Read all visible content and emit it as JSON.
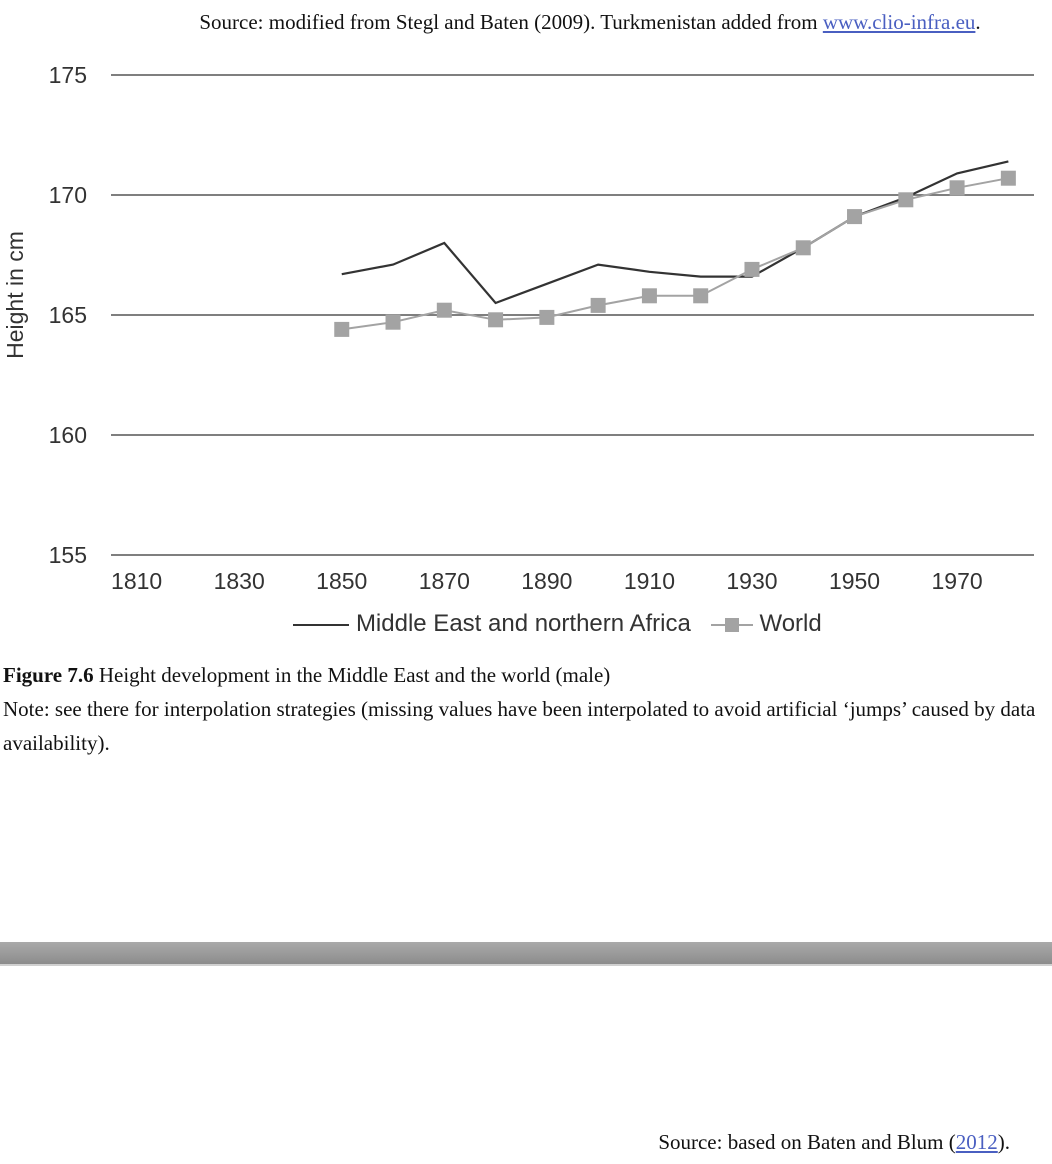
{
  "source_top": {
    "prefix": "Source: modified from Stegl and Baten (2009). Turkmenistan added from ",
    "link": "www.clio-infra.eu",
    "suffix": "."
  },
  "caption": {
    "label": "Figure 7.6",
    "title": " Height development in the Middle East and the world (male)",
    "note": "Note: see there for interpolation strategies (missing values have been interpolated to avoid artificial ‘jumps’ caused by data availability)."
  },
  "source_bottom": {
    "prefix": "Source: based on Baten and Blum (",
    "link": "2012",
    "suffix": ")."
  },
  "chart_data": {
    "type": "line",
    "title": "",
    "xlabel": "",
    "ylabel": "Height in cm",
    "xlim": [
      1805,
      1985
    ],
    "ylim": [
      155,
      175
    ],
    "xticks": [
      "1810",
      "1830",
      "1850",
      "1870",
      "1890",
      "1910",
      "1930",
      "1950",
      "1970"
    ],
    "yticks": [
      "155",
      "160",
      "165",
      "170",
      "175"
    ],
    "grid": "horizontal",
    "legend": "bottom",
    "series": [
      {
        "name": "Middle East and northern Africa",
        "color": "#333333",
        "marker": "none",
        "x": [
          1850,
          1860,
          1870,
          1880,
          1890,
          1900,
          1910,
          1920,
          1930,
          1940,
          1950,
          1960,
          1970,
          1980
        ],
        "y": [
          166.7,
          167.1,
          168.0,
          165.5,
          166.3,
          167.1,
          166.8,
          166.6,
          166.6,
          167.8,
          169.1,
          169.9,
          170.9,
          171.4
        ]
      },
      {
        "name": "World",
        "color": "#a3a3a3",
        "marker": "square",
        "x": [
          1850,
          1860,
          1870,
          1880,
          1890,
          1900,
          1910,
          1920,
          1930,
          1940,
          1950,
          1960,
          1970,
          1980
        ],
        "y": [
          164.4,
          164.7,
          165.2,
          164.8,
          164.9,
          165.4,
          165.8,
          165.8,
          166.9,
          167.8,
          169.1,
          169.8,
          170.3,
          170.7
        ]
      }
    ]
  }
}
